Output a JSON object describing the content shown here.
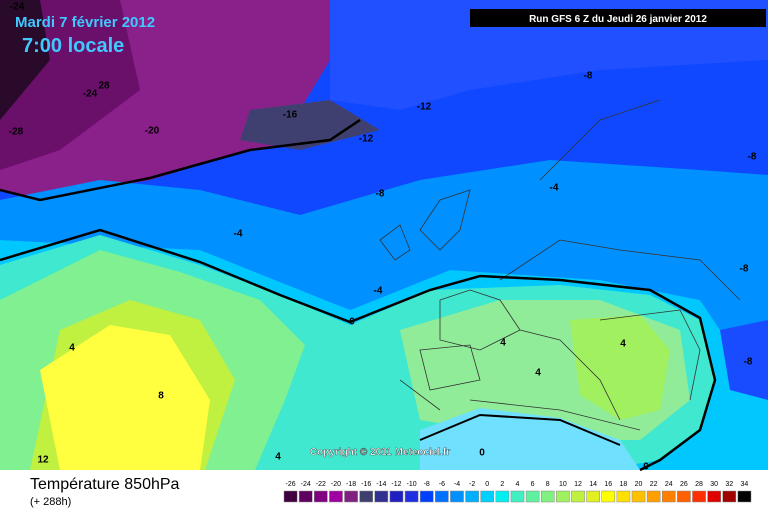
{
  "header": {
    "date": "Mardi 7 février 2012",
    "time": "7:00 locale",
    "run": "Run GFS 6 Z du Jeudi 26 janvier 2012"
  },
  "map": {
    "copyright": "Copyright © 2011 Meteociel.fr",
    "contour_labels": [
      -24,
      -24,
      28,
      -28,
      -20,
      -16,
      -12,
      -12,
      -8,
      -8,
      -8,
      -4,
      -4,
      -4,
      -8,
      0,
      4,
      4,
      4,
      4,
      -8,
      8,
      12,
      4,
      0,
      0
    ]
  },
  "footer": {
    "title": "Température 850hPa",
    "lead": "(+ 288h)"
  },
  "scale": {
    "labels": [
      -26,
      -24,
      -22,
      -20,
      -18,
      -16,
      -14,
      -12,
      -10,
      -8,
      -6,
      -4,
      -2,
      0,
      2,
      4,
      6,
      8,
      10,
      12,
      14,
      16,
      18,
      20,
      22,
      24,
      26,
      28,
      30,
      32,
      34
    ],
    "colors": [
      "#400040",
      "#600060",
      "#800080",
      "#a000a0",
      "#802080",
      "#404070",
      "#303090",
      "#2020c0",
      "#2030e0",
      "#0040ff",
      "#0070ff",
      "#0090ff",
      "#00b0ff",
      "#00d0ff",
      "#00f0f0",
      "#40f0c0",
      "#60f0a0",
      "#80f080",
      "#a0f060",
      "#c0f040",
      "#e0f020",
      "#ffff00",
      "#ffe000",
      "#ffc000",
      "#ffa000",
      "#ff8000",
      "#ff6000",
      "#ff3000",
      "#e00000",
      "#a00000",
      "#000000"
    ]
  }
}
